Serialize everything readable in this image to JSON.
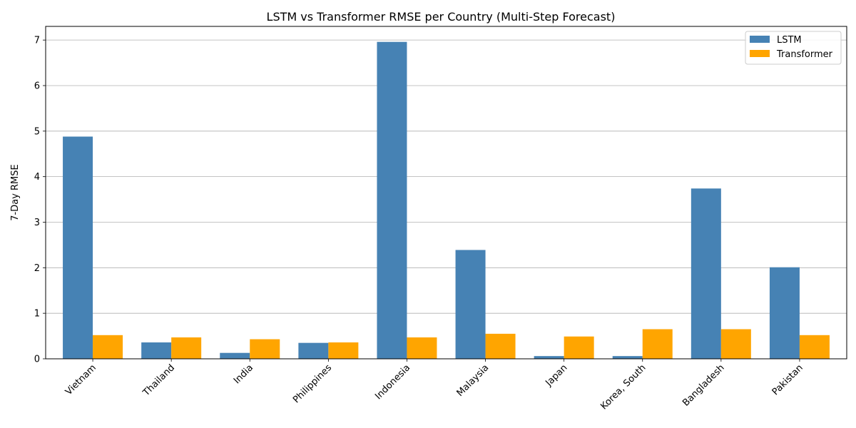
{
  "chart_data": {
    "type": "bar",
    "title": "LSTM vs Transformer RMSE per Country (Multi-Step Forecast)",
    "xlabel": "",
    "ylabel": "7-Day RMSE",
    "categories": [
      "Vietnam",
      "Thailand",
      "India",
      "Philippines",
      "Indonesia",
      "Malaysia",
      "Japan",
      "Korea, South",
      "Bangladesh",
      "Pakistan"
    ],
    "series": [
      {
        "name": "LSTM",
        "color": "#4682b4",
        "values": [
          4.88,
          0.36,
          0.13,
          0.35,
          6.96,
          2.39,
          0.06,
          0.06,
          3.74,
          2.01
        ]
      },
      {
        "name": "Transformer",
        "color": "#ffa500",
        "values": [
          0.52,
          0.47,
          0.43,
          0.36,
          0.47,
          0.55,
          0.49,
          0.65,
          0.65,
          0.52
        ]
      }
    ],
    "ylim": [
      0,
      7.3
    ],
    "yticks": [
      "0",
      "1",
      "2",
      "3",
      "4",
      "5",
      "6",
      "7"
    ],
    "grid": "y",
    "legend_position": "upper right",
    "xtick_rotation": "45"
  }
}
